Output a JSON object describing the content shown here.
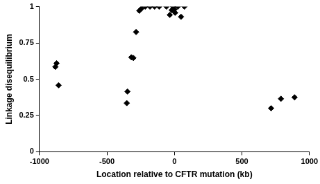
{
  "chart_data": {
    "type": "scatter",
    "x_label": "Location relative to CFTR mutation (kb)",
    "y_label": "Linkage disequilibrium",
    "x": [
      -882,
      -873,
      -858,
      -353,
      -348,
      -319,
      -304,
      -284,
      -260,
      -245,
      -216,
      -181,
      -147,
      -113,
      -59,
      -34,
      -20,
      -10,
      0,
      5,
      25,
      49,
      74,
      716,
      789,
      890
    ],
    "values": [
      0.585,
      0.61,
      0.458,
      0.335,
      0.415,
      0.651,
      0.646,
      0.825,
      0.972,
      0.986,
      1,
      1,
      1,
      1,
      1,
      0.943,
      0.976,
      1,
      0.98,
      0.958,
      1,
      0.93,
      1,
      0.3,
      0.365,
      0.375
    ],
    "color": "#000000",
    "marker": "diamond",
    "xlim": [
      -1000,
      1000
    ],
    "xticks": [
      -1000,
      -500,
      0,
      500,
      1000
    ],
    "ylim": [
      0,
      1
    ],
    "yticks": [
      0,
      0.25,
      0.5,
      0.75,
      1
    ],
    "grid": false
  }
}
